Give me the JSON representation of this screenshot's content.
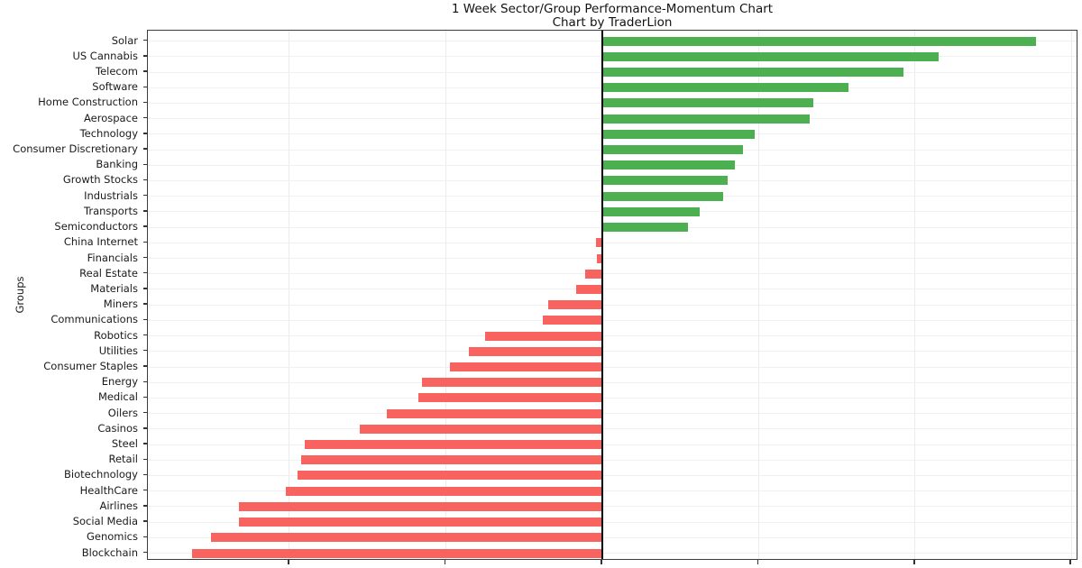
{
  "header": {
    "title": "1 Week Sector/Group Performance-Momentum Chart",
    "subtitle": "Chart by TraderLion"
  },
  "colors": {
    "positive_bar": "#4caf50",
    "negative_bar": "#f8625f",
    "zero_line": "#000000",
    "gridline": "#ececec",
    "spine": "#3c3c3c"
  },
  "chart_data": {
    "type": "bar",
    "orientation": "horizontal",
    "title": "1 Week Sector/Group Performance-Momentum Chart",
    "subtitle": "Chart by TraderLion",
    "xlabel": "",
    "ylabel": "Groups",
    "grid": true,
    "legend": false,
    "xlim": [
      -5.81,
      6.09
    ],
    "xticks": [
      -4,
      -2,
      0,
      2,
      4,
      6
    ],
    "xtick_labels_visible": false,
    "zero_reference_line": 0,
    "positive_color": "#4caf50",
    "negative_color": "#f8625f",
    "categories": [
      "Solar",
      "US Cannabis",
      "Telecom",
      "Software",
      "Home Construction",
      "Aerospace",
      "Technology",
      "Consumer Discretionary",
      "Banking",
      "Growth Stocks",
      "Industrials",
      "Transports",
      "Semiconductors",
      "China Internet",
      "Financials",
      "Real Estate",
      "Materials",
      "Miners",
      "Communications",
      "Robotics",
      "Utilities",
      "Consumer Staples",
      "Energy",
      "Medical",
      "Oilers",
      "Casinos",
      "Steel",
      "Retail",
      "Biotechnology",
      "HealthCare",
      "Airlines",
      "Social Media",
      "Genomics",
      "Blockchain"
    ],
    "values": [
      5.55,
      4.3,
      3.85,
      3.15,
      2.7,
      2.65,
      1.95,
      1.8,
      1.7,
      1.6,
      1.55,
      1.25,
      1.1,
      -0.08,
      -0.07,
      -0.22,
      -0.33,
      -0.69,
      -0.76,
      -1.5,
      -1.7,
      -1.95,
      -2.3,
      -2.35,
      -2.75,
      -3.1,
      -3.8,
      -3.85,
      -3.9,
      -4.05,
      -4.65,
      -4.65,
      -5.0,
      -5.25
    ]
  }
}
